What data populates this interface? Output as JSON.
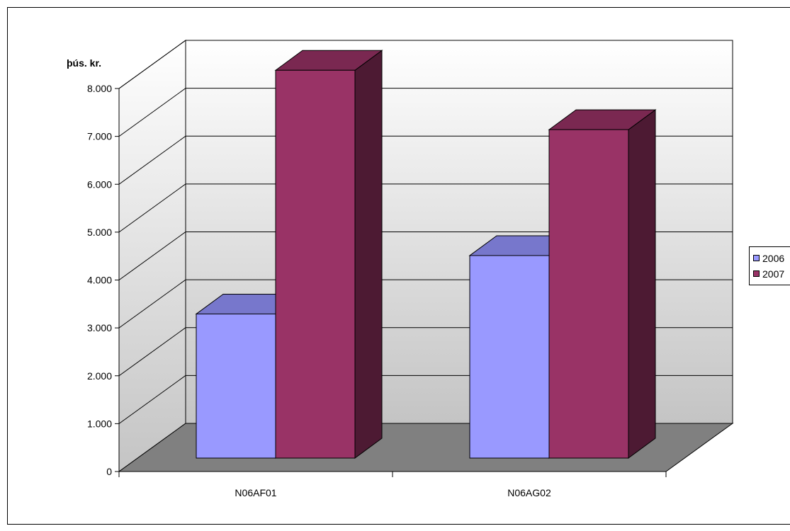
{
  "chart_data": {
    "type": "bar",
    "unit_label": "þús. kr.",
    "categories": [
      "N06AF01",
      "N06AG02"
    ],
    "series": [
      {
        "name": "2006",
        "values": [
          3010,
          4230
        ]
      },
      {
        "name": "2007",
        "values": [
          8100,
          6860
        ]
      }
    ],
    "ylim": [
      0,
      8000
    ],
    "yticks": [
      "0",
      "1.000",
      "2.000",
      "3.000",
      "4.000",
      "5.000",
      "6.000",
      "7.000",
      "8.000"
    ],
    "grid": true,
    "legend_position": "right",
    "colors": {
      "2006_front": "#9999ff",
      "2006_top": "#7777cc",
      "2006_side": "#4d4d80",
      "2007_front": "#993366",
      "2007_top": "#7a2851",
      "2007_side": "#4d1a33",
      "floor": "#808080"
    }
  }
}
